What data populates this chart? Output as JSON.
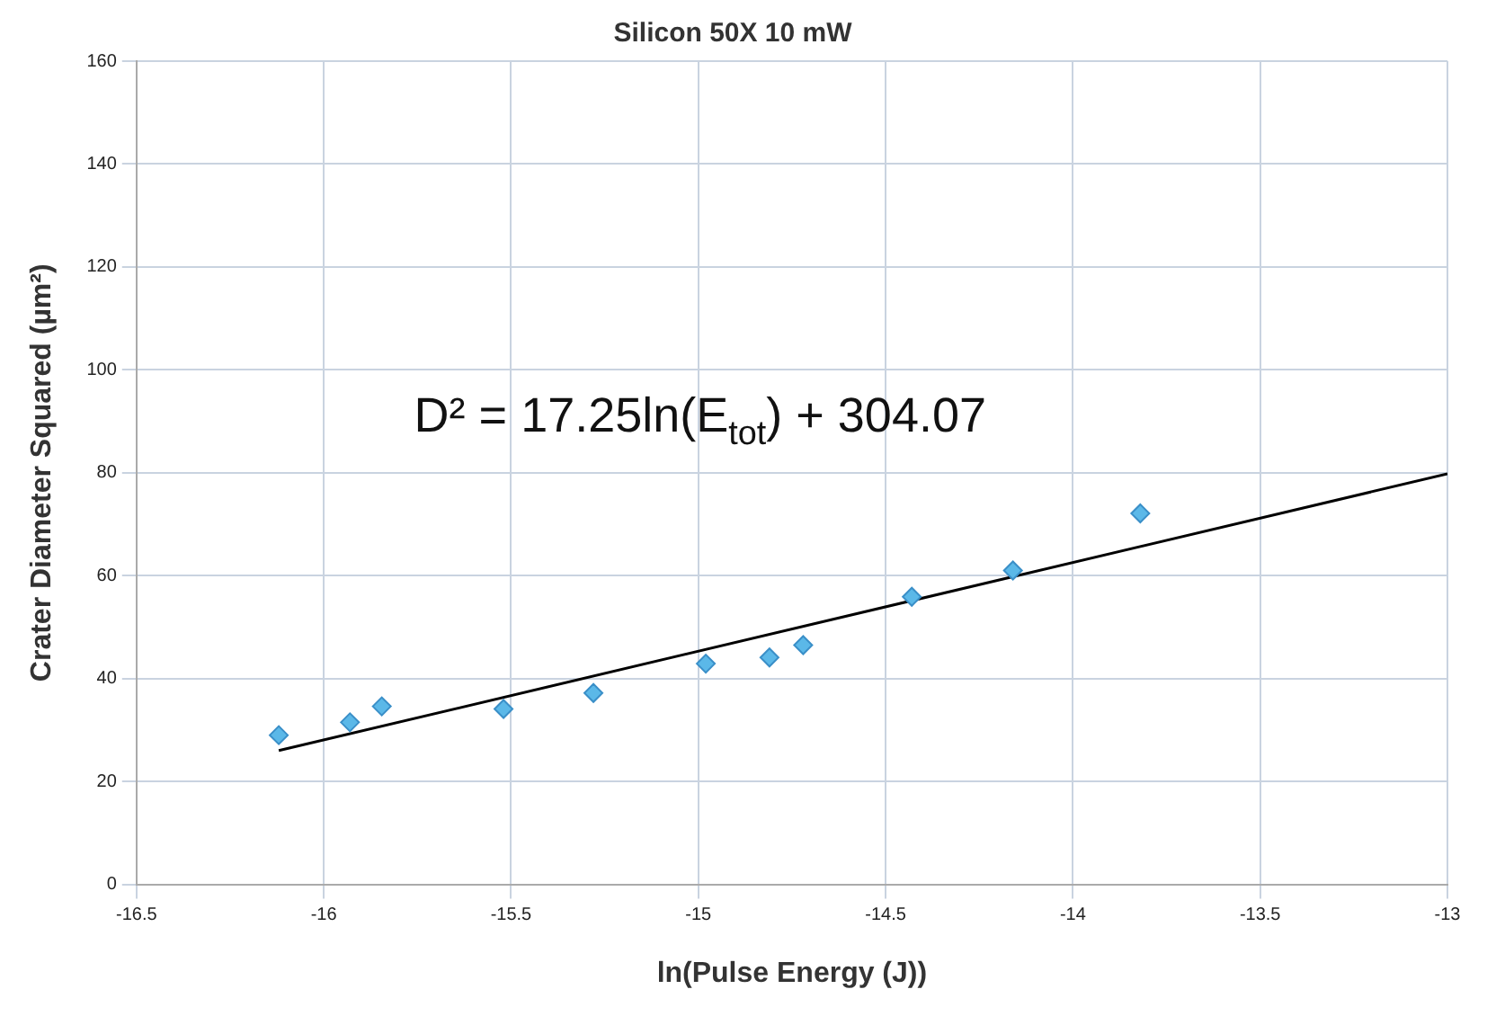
{
  "chart_data": {
    "type": "scatter",
    "title": "Silicon 50X 10 mW",
    "xlabel": "ln(Pulse Energy (J))",
    "ylabel": "Crater Diameter Squared (µm²)",
    "x": [
      -16.12,
      -15.93,
      -15.845,
      -15.52,
      -15.28,
      -14.98,
      -14.81,
      -14.72,
      -14.43,
      -14.16,
      -13.82
    ],
    "series": [
      {
        "type": "scatter",
        "color": "#5bb8e8",
        "marker": "diamond",
        "values": [
          29.0,
          31.5,
          34.6,
          34.1,
          37.2,
          42.9,
          44.1,
          46.5,
          55.9,
          61.0,
          72.1
        ]
      },
      {
        "type": "line",
        "color": "#000000",
        "marker": "none",
        "x": [
          -16.12,
          -13
        ],
        "values": [
          26.0,
          79.8
        ]
      }
    ],
    "xlim": [
      -16.5,
      -13
    ],
    "xticks": [
      -16.5,
      -16,
      -15.5,
      -15,
      -14.5,
      -14,
      -13.5,
      -13
    ],
    "ylim": [
      0,
      160
    ],
    "yticks": [
      0,
      20,
      40,
      60,
      80,
      100,
      120,
      140,
      160
    ],
    "grid": true,
    "legend": false,
    "annotations": [
      "D² = 17.25ln(E$_{tot}$) + 304.07"
    ]
  }
}
